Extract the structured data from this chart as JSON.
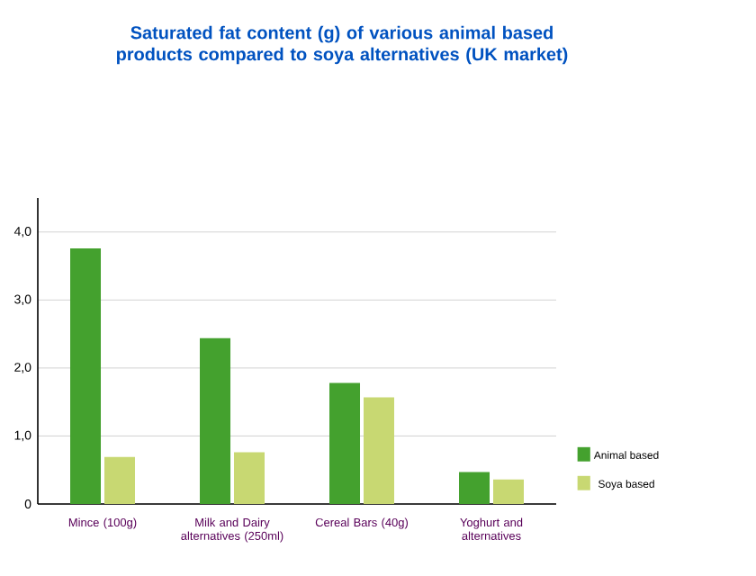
{
  "chart_data": {
    "type": "bar",
    "title": "Saturated fat content (g) of various animal based products compared to soya alternatives (UK market)",
    "categories": [
      "Mince (100g)",
      "Milk and Dairy alternatives (250ml)",
      "Cereal Bars (40g)",
      "Yoghurt and alternatives"
    ],
    "series": [
      {
        "name": "Animal based",
        "color": "#44a12e",
        "values": [
          3.76,
          2.44,
          1.78,
          0.47
        ]
      },
      {
        "name": "Soya based",
        "color": "#c8d872",
        "values": [
          0.69,
          0.76,
          1.57,
          0.36
        ]
      }
    ],
    "ylim": [
      0,
      4.5
    ],
    "yticks": [
      {
        "value": 0,
        "label": "0"
      },
      {
        "value": 1,
        "label": "1,0"
      },
      {
        "value": 2,
        "label": "2,0"
      },
      {
        "value": 3,
        "label": "3,0"
      },
      {
        "value": 4,
        "label": "4,0"
      }
    ],
    "grid": "y",
    "legend": "bottom right"
  }
}
